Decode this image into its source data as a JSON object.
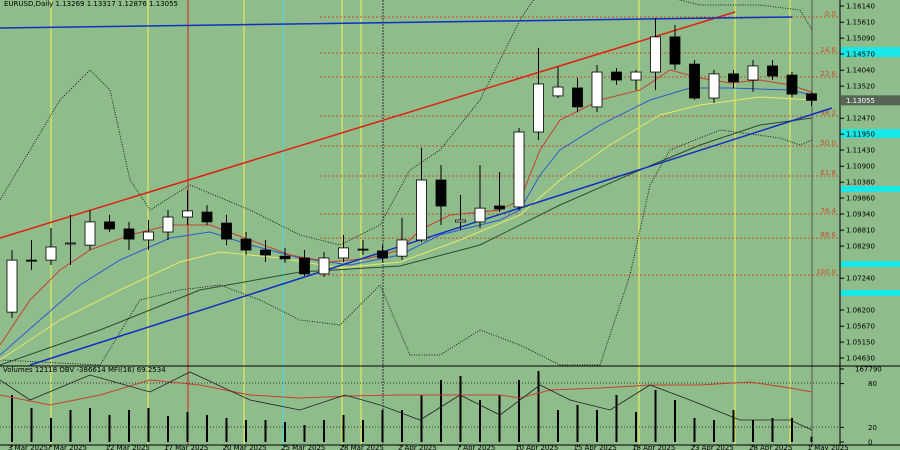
{
  "chart_data": {
    "type": "candlestick",
    "title": "EURUSD,Daily  1.13269 1.13317 1.12876 1.13055",
    "categories": [
      "3 Mar 2025",
      null,
      "7 Mar 2025",
      null,
      null,
      "12 Mar 2025",
      null,
      null,
      "17 Mar 2025",
      null,
      null,
      "20 Mar 2025",
      null,
      null,
      "25 Mar 2025",
      null,
      null,
      "28 Mar 2025",
      null,
      null,
      "2 Apr 2025",
      null,
      null,
      "7 Apr 2025",
      null,
      null,
      "10 Apr 2025",
      null,
      null,
      "15 Apr 2025",
      null,
      null,
      "18 Apr 2025",
      null,
      null,
      "23 Apr 2025",
      null,
      null,
      "28 Apr 2025",
      null,
      null,
      "1 May 2025"
    ],
    "open": [
      1.0613,
      1.0783,
      1.0783,
      1.0836,
      1.0832,
      1.0908,
      1.0885,
      1.0849,
      1.0875,
      1.0924,
      1.094,
      1.0904,
      1.0852,
      1.0816,
      1.0796,
      1.079,
      1.0738,
      1.079,
      1.0819,
      1.0813,
      1.0796,
      1.0849,
      1.1045,
      1.0908,
      1.0908,
      1.096,
      1.0957,
      1.1202,
      1.132,
      1.1346,
      1.1284,
      1.1398,
      1.1372,
      1.1398,
      1.1513,
      1.1424,
      1.1313,
      1.1392,
      1.1372,
      1.1418,
      1.1388,
      1.13269
    ],
    "high": [
      1.0816,
      1.0849,
      1.0888,
      1.0931,
      1.0947,
      1.0931,
      1.0908,
      1.0914,
      1.0947,
      1.1012,
      1.0963,
      1.0931,
      1.0875,
      1.0849,
      1.0823,
      1.0816,
      1.081,
      1.0865,
      1.0849,
      1.0832,
      1.0921,
      1.115,
      1.1094,
      1.0996,
      1.1094,
      1.1071,
      1.1215,
      1.1477,
      1.1415,
      1.1379,
      1.1421,
      1.1411,
      1.1405,
      1.1575,
      1.1552,
      1.1437,
      1.1405,
      1.1405,
      1.1437,
      1.1437,
      1.1398,
      1.13317
    ],
    "low": [
      1.0594,
      1.0751,
      1.0767,
      1.0767,
      1.0816,
      1.0875,
      1.0816,
      1.0816,
      1.0849,
      1.0898,
      1.0898,
      1.0832,
      1.08,
      1.0777,
      1.0774,
      1.0731,
      1.0728,
      1.0777,
      1.08,
      1.0777,
      1.0783,
      1.0842,
      1.0898,
      1.0882,
      1.0888,
      1.094,
      1.0947,
      1.1176,
      1.1313,
      1.1267,
      1.1267,
      1.1356,
      1.1339,
      1.1339,
      1.1405,
      1.1307,
      1.1297,
      1.1346,
      1.1333,
      1.1372,
      1.1316,
      1.12876
    ],
    "close": [
      1.0783,
      1.078,
      1.0826,
      1.0839,
      1.0908,
      1.0885,
      1.0852,
      1.0875,
      1.0924,
      1.0944,
      1.0908,
      1.0852,
      1.0816,
      1.08,
      1.0787,
      1.0738,
      1.079,
      1.0823,
      1.0816,
      1.079,
      1.0849,
      1.1045,
      1.096,
      1.0914,
      1.0953,
      1.095,
      1.1202,
      1.1359,
      1.1349,
      1.1284,
      1.1398,
      1.1372,
      1.1398,
      1.1513,
      1.1424,
      1.1313,
      1.1392,
      1.1366,
      1.1418,
      1.1385,
      1.1326,
      1.13055
    ],
    "up_color": "#ffffff",
    "down_color": "#000000",
    "ylim": [
      1.04401,
      1.16336
    ],
    "yticks": [
      {
        "value": 1.1614,
        "label": "1.16140"
      },
      {
        "value": 1.1561,
        "label": "1.15610"
      },
      {
        "value": 1.1509,
        "label": "1.15090"
      },
      {
        "value": 1.1457,
        "label": "1.14570"
      },
      {
        "value": 1.1404,
        "label": "1.14040"
      },
      {
        "value": 1.1352,
        "label": "1.13520"
      },
      {
        "value": 1.1247,
        "label": "1.12470"
      },
      {
        "value": 1.1195,
        "label": "1.11950"
      },
      {
        "value": 1.1143,
        "label": "1.11430"
      },
      {
        "value": 1.109,
        "label": "1.10900"
      },
      {
        "value": 1.1038,
        "label": "1.10380"
      },
      {
        "value": 1.0986,
        "label": "1.09860"
      },
      {
        "value": 1.0934,
        "label": "1.09340"
      },
      {
        "value": 1.0881,
        "label": "1.08810"
      },
      {
        "value": 1.0829,
        "label": "1.08290"
      },
      {
        "value": 1.0724,
        "label": "1.07240"
      },
      {
        "value": 1.062,
        "label": "1.06200"
      },
      {
        "value": 1.0567,
        "label": "1.05670"
      },
      {
        "value": 1.0515,
        "label": "1.05150"
      },
      {
        "value": 1.0463,
        "label": "1.04630"
      }
    ],
    "price_marker": {
      "value": 1.13055,
      "label": "1.13055"
    },
    "fib_levels": [
      {
        "label": "0.0",
        "price": 1.1578
      },
      {
        "label": "14.6",
        "price": 1.146
      },
      {
        "label": "23.6",
        "price": 1.1382
      },
      {
        "label": "38.2",
        "price": 1.1254
      },
      {
        "label": "50.0",
        "price": 1.1156
      },
      {
        "label": "61.8",
        "price": 1.1058
      },
      {
        "label": "76.4",
        "price": 1.0934
      },
      {
        "label": "88.6",
        "price": 1.0855
      },
      {
        "label": "100.0",
        "price": 1.0734
      }
    ],
    "fib_color": "#c8502a",
    "volume": {
      "title": "Volumes 12118  OBV -386614  MFI(16) 69.2534",
      "values": [
        108000,
        78100,
        55200,
        73500,
        78100,
        62000,
        73500,
        78100,
        59700,
        68900,
        62000,
        55200,
        50600,
        50600,
        46000,
        39100,
        50600,
        62000,
        50600,
        73500,
        73500,
        108000,
        142500,
        151700,
        96500,
        108000,
        142500,
        163200,
        73500,
        85000,
        73500,
        108000,
        68900,
        119500,
        96500,
        55200,
        50600,
        73500,
        50600,
        55200,
        55200,
        12118
      ],
      "color": "#000000",
      "ylim": [
        0,
        167790
      ],
      "yticks": [
        0,
        167790
      ],
      "y2lim": [
        0,
        100
      ],
      "y2ticks": [
        20,
        80
      ]
    }
  }
}
